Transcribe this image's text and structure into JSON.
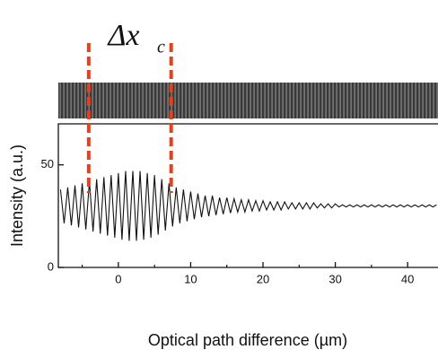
{
  "chart_data": {
    "type": "line",
    "annotation": {
      "text": "Δx",
      "subscript": "c"
    },
    "xlabel": "Optical path difference (µm)",
    "ylabel": "Intensity (a.u.)",
    "x": [
      -8,
      -7.5,
      -7,
      -6.5,
      -6,
      -5.5,
      -5,
      -4.5,
      -4,
      -3.5,
      -3,
      -2.5,
      -2,
      -1.5,
      -1,
      -0.5,
      0,
      0.5,
      1,
      1.5,
      2,
      2.5,
      3,
      3.5,
      4,
      4.5,
      5,
      5.5,
      6,
      6.5,
      7,
      7.5,
      8,
      8.5,
      9,
      9.5,
      10,
      10.5,
      11,
      11.5,
      12,
      12.5,
      13,
      13.5,
      14,
      14.5,
      15,
      15.5,
      16,
      16.5,
      17,
      17.5,
      18,
      18.5,
      19,
      19.5,
      20,
      20.5,
      21,
      21.5,
      22,
      22.5,
      23,
      23.5,
      24,
      24.5,
      25,
      25.5,
      26,
      26.5,
      27,
      27.5,
      28,
      28.5,
      29,
      29.5,
      30,
      30.5,
      31,
      31.5,
      32,
      32.5,
      33,
      33.5,
      34,
      34.5,
      35,
      35.5,
      36,
      36.5,
      37,
      37.5,
      38,
      38.5,
      39,
      39.5,
      40,
      40.5,
      41,
      41.5,
      42,
      42.5,
      43,
      43.5,
      44
    ],
    "values": [
      38,
      21.5,
      39,
      20.5,
      40,
      19.5,
      41,
      18.5,
      42,
      17.5,
      43,
      16.5,
      44,
      15.5,
      45,
      14.5,
      46,
      13.5,
      47,
      13,
      47,
      13,
      47,
      13.5,
      46,
      14.5,
      45,
      16,
      43,
      18,
      41,
      20,
      39,
      21.5,
      38,
      22.5,
      37,
      23.5,
      36,
      24.5,
      35,
      25,
      35,
      25.5,
      34,
      26,
      34,
      26.5,
      33.5,
      27,
      33,
      27,
      33,
      27.5,
      32.5,
      27.5,
      32.5,
      28,
      32,
      28,
      32,
      28,
      32,
      28.5,
      31.5,
      28.5,
      31.5,
      28.5,
      31.5,
      28.5,
      31.5,
      29,
      31,
      29,
      31,
      29,
      31,
      29.5,
      30.5,
      29.5,
      30.5,
      29.5,
      30.5,
      29.5,
      30.5,
      29.5,
      30.5,
      29.5,
      30.5,
      29.5,
      30.5,
      29.5,
      30.5,
      29.5,
      30.5,
      29.5,
      30.5,
      29.5,
      30.5,
      29.5,
      30.5,
      29.5,
      30.5,
      29.5,
      30.5
    ],
    "color": "#111111",
    "xlim": [
      -8.3,
      44.2
    ],
    "ylim": [
      0,
      70
    ],
    "xticks": [
      0,
      10,
      20,
      30,
      40
    ],
    "xminor_ticks": [
      -5,
      5,
      15,
      25,
      35
    ],
    "yticks": [
      0,
      50
    ],
    "marker_x": [
      -4.1,
      7.3
    ],
    "marker_color": "#e8401c"
  }
}
